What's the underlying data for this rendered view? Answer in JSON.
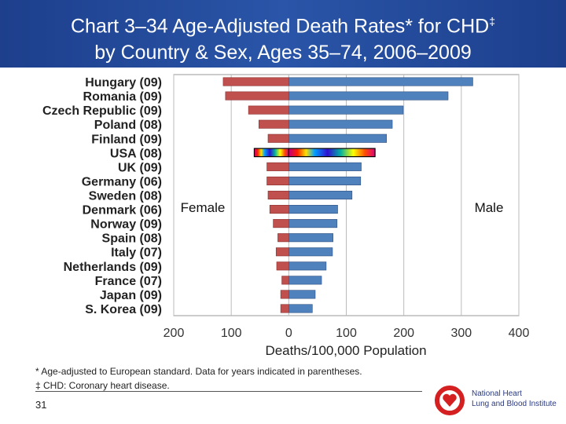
{
  "title_line1": "Chart 3–34 Age-Adjusted Death Rates* for CHD",
  "title_mark": "‡",
  "title_line2": "by Country & Sex, Ages 35–74, 2006–2009",
  "footnote1": "* Age-adjusted to European standard. Data for years indicated in parentheses.",
  "footnote2": "‡ CHD: Coronary heart disease.",
  "page_number": "31",
  "logo": {
    "line1": "National Heart",
    "line2": "Lung and Blood Institute"
  },
  "colors": {
    "female": "#c0504d",
    "male": "#4f81bd",
    "title_bar": "#2a55a8"
  },
  "chart_data": {
    "type": "bar",
    "orientation": "horizontal-butterfly",
    "categories": [
      "Hungary (09)",
      "Romania (09)",
      "Czech Republic (09)",
      "Poland (08)",
      "Finland (09)",
      "USA (08)",
      "UK (09)",
      "Germany (06)",
      "Sweden (08)",
      "Denmark (06)",
      "Norway (09)",
      "Spain (08)",
      "Italy (07)",
      "Netherlands (09)",
      "France (07)",
      "Japan (09)",
      "S. Korea (09)"
    ],
    "series": [
      {
        "name": "Female",
        "values": [
          114,
          110,
          70,
          52,
          36,
          60,
          38,
          38,
          36,
          33,
          27,
          19,
          22,
          21,
          12,
          14,
          14
        ]
      },
      {
        "name": "Male",
        "values": [
          320,
          277,
          199,
          180,
          170,
          150,
          126,
          125,
          110,
          85,
          84,
          77,
          76,
          65,
          57,
          46,
          41
        ]
      }
    ],
    "highlight": "USA (08)",
    "xlabel": "Deaths/100,000 Population",
    "xticks": [
      "200",
      "100",
      "0",
      "100",
      "200",
      "300",
      "400"
    ],
    "xlim": [
      -200,
      400
    ],
    "grid": true
  }
}
